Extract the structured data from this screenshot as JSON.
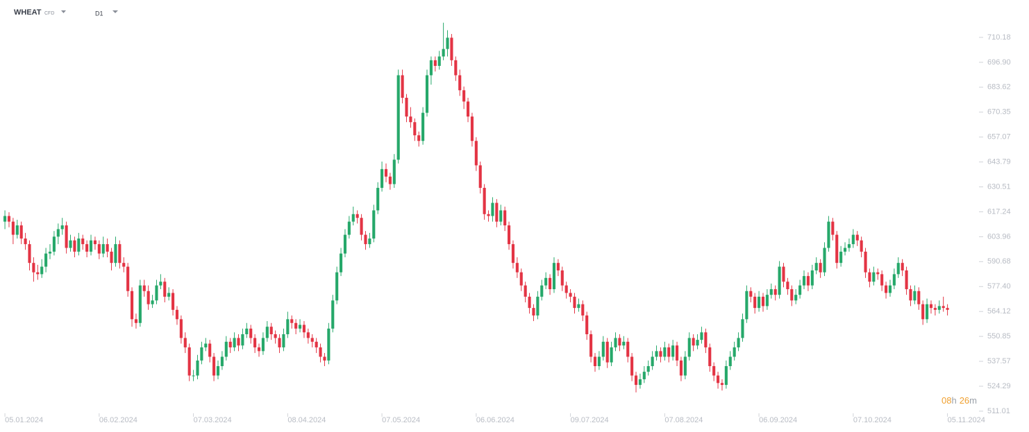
{
  "chart_data": {
    "type": "candlestick",
    "symbol": "WHEAT",
    "instrument": "CFD",
    "timeframe": "D1",
    "countdown_parts": [
      "08",
      "h",
      "26",
      "m"
    ],
    "up_color": "#26a86a",
    "down_color": "#e33444",
    "ylim": [
      508.4,
      730.1
    ],
    "yticks": [
      710.18,
      {
        "value": 696.9,
        "label": "696.90"
      },
      683.62,
      670.35,
      657.07,
      643.79,
      630.51,
      617.24,
      603.96,
      590.68,
      {
        "value": 577.4,
        "label": "577.40"
      },
      564.12,
      550.85,
      537.57,
      524.29,
      511.01
    ],
    "xlim": [
      -1.2,
      236
    ],
    "xticks": [
      {
        "value": 0,
        "label": "05.01.2024"
      },
      {
        "value": 23,
        "label": "06.02.2024"
      },
      {
        "value": 46,
        "label": "07.03.2024"
      },
      {
        "value": 69,
        "label": "08.04.2024"
      },
      {
        "value": 92,
        "label": "07.05.2024"
      },
      {
        "value": 115,
        "label": "06.06.2024"
      },
      {
        "value": 138,
        "label": "09.07.2024"
      },
      {
        "value": 161,
        "label": "07.08.2024"
      },
      {
        "value": 184,
        "label": "06.09.2024"
      },
      {
        "value": 207,
        "label": "07.10.2024"
      },
      {
        "value": 230,
        "label": "05.11.2024"
      }
    ],
    "ohlc": [
      [
        612,
        618,
        608,
        615
      ],
      [
        615,
        617,
        609,
        612
      ],
      [
        612,
        614,
        600,
        605
      ],
      [
        605,
        613,
        603,
        610
      ],
      [
        610,
        612,
        600,
        603
      ],
      [
        603,
        606,
        597,
        600
      ],
      [
        600,
        602,
        586,
        590
      ],
      [
        590,
        593,
        580,
        585
      ],
      [
        585,
        589,
        581,
        584
      ],
      [
        584,
        592,
        582,
        588
      ],
      [
        588,
        598,
        585,
        595
      ],
      [
        595,
        600,
        592,
        596
      ],
      [
        596,
        607,
        594,
        604
      ],
      [
        604,
        611,
        600,
        608
      ],
      [
        608,
        614,
        605,
        610
      ],
      [
        610,
        612,
        595,
        598
      ],
      [
        598,
        605,
        596,
        602
      ],
      [
        602,
        604,
        593,
        596
      ],
      [
        596,
        606,
        594,
        603
      ],
      [
        603,
        605,
        597,
        600
      ],
      [
        600,
        602,
        593,
        596
      ],
      [
        596,
        605,
        594,
        602
      ],
      [
        602,
        604,
        597,
        600
      ],
      [
        600,
        602,
        592,
        595
      ],
      [
        595,
        604,
        593,
        600
      ],
      [
        600,
        603,
        593,
        596
      ],
      [
        596,
        598,
        586,
        590
      ],
      [
        590,
        604,
        588,
        600
      ],
      [
        600,
        602,
        587,
        590
      ],
      [
        590,
        593,
        585,
        588
      ],
      [
        588,
        590,
        572,
        575
      ],
      [
        575,
        577,
        556,
        560
      ],
      [
        560,
        563,
        555,
        558
      ],
      [
        558,
        581,
        556,
        578
      ],
      [
        578,
        581,
        572,
        575
      ],
      [
        575,
        578,
        565,
        568
      ],
      [
        568,
        573,
        566,
        570
      ],
      [
        570,
        581,
        568,
        578
      ],
      [
        578,
        584,
        576,
        580
      ],
      [
        580,
        582,
        569,
        572
      ],
      [
        572,
        577,
        570,
        574
      ],
      [
        574,
        576,
        562,
        565
      ],
      [
        565,
        567,
        557,
        560
      ],
      [
        560,
        562,
        547,
        550
      ],
      [
        550,
        553,
        542,
        545
      ],
      [
        545,
        547,
        527,
        530
      ],
      [
        530,
        533,
        527,
        530
      ],
      [
        530,
        541,
        528,
        538
      ],
      [
        538,
        548,
        536,
        545
      ],
      [
        545,
        550,
        543,
        547
      ],
      [
        547,
        549,
        537,
        540
      ],
      [
        540,
        542,
        527,
        530
      ],
      [
        530,
        538,
        528,
        535
      ],
      [
        535,
        543,
        533,
        540
      ],
      [
        540,
        551,
        538,
        548
      ],
      [
        548,
        550,
        542,
        545
      ],
      [
        545,
        553,
        543,
        550
      ],
      [
        550,
        552,
        543,
        546
      ],
      [
        546,
        555,
        544,
        552
      ],
      [
        552,
        558,
        550,
        555
      ],
      [
        555,
        557,
        547,
        550
      ],
      [
        550,
        552,
        542,
        545
      ],
      [
        545,
        547,
        540,
        543
      ],
      [
        543,
        553,
        541,
        550
      ],
      [
        550,
        559,
        548,
        556
      ],
      [
        556,
        558,
        549,
        552
      ],
      [
        552,
        554,
        547,
        550
      ],
      [
        550,
        552,
        542,
        545
      ],
      [
        545,
        555,
        543,
        552
      ],
      [
        552,
        564,
        550,
        560
      ],
      [
        560,
        562,
        555,
        558
      ],
      [
        558,
        560,
        552,
        555
      ],
      [
        555,
        560,
        553,
        557
      ],
      [
        557,
        559,
        550,
        553
      ],
      [
        553,
        555,
        547,
        550
      ],
      [
        550,
        552,
        545,
        548
      ],
      [
        548,
        550,
        542,
        545
      ],
      [
        545,
        547,
        537,
        540
      ],
      [
        540,
        542,
        535,
        538
      ],
      [
        538,
        558,
        536,
        555
      ],
      [
        555,
        573,
        553,
        570
      ],
      [
        570,
        588,
        568,
        585
      ],
      [
        585,
        598,
        583,
        595
      ],
      [
        595,
        608,
        593,
        605
      ],
      [
        605,
        615,
        603,
        612
      ],
      [
        612,
        620,
        610,
        616
      ],
      [
        616,
        618,
        611,
        614
      ],
      [
        614,
        616,
        602,
        605
      ],
      [
        605,
        607,
        597,
        600
      ],
      [
        600,
        606,
        598,
        603
      ],
      [
        603,
        621,
        601,
        618
      ],
      [
        618,
        633,
        616,
        630
      ],
      [
        630,
        644,
        628,
        640
      ],
      [
        640,
        643,
        633,
        636
      ],
      [
        636,
        638,
        629,
        632
      ],
      [
        632,
        648,
        630,
        645
      ],
      [
        645,
        693,
        643,
        690
      ],
      [
        690,
        693,
        675,
        678
      ],
      [
        678,
        680,
        665,
        668
      ],
      [
        668,
        673,
        662,
        665
      ],
      [
        665,
        667,
        655,
        658
      ],
      [
        658,
        660,
        652,
        655
      ],
      [
        655,
        673,
        653,
        670
      ],
      [
        670,
        693,
        668,
        690
      ],
      [
        690,
        700,
        685,
        698
      ],
      [
        698,
        700,
        692,
        695
      ],
      [
        695,
        703,
        693,
        700
      ],
      [
        700,
        718,
        698,
        704
      ],
      [
        704,
        714,
        700,
        710
      ],
      [
        710,
        712,
        695,
        698
      ],
      [
        698,
        700,
        687,
        690
      ],
      [
        690,
        693,
        679,
        682
      ],
      [
        682,
        684,
        672,
        676
      ],
      [
        676,
        678,
        665,
        668
      ],
      [
        668,
        670,
        652,
        655
      ],
      [
        655,
        657,
        639,
        642
      ],
      [
        642,
        644,
        627,
        630
      ],
      [
        630,
        632,
        613,
        616
      ],
      [
        616,
        618,
        612,
        615
      ],
      [
        615,
        625,
        612,
        622
      ],
      [
        622,
        624,
        609,
        612
      ],
      [
        612,
        621,
        610,
        618
      ],
      [
        618,
        620,
        607,
        610
      ],
      [
        610,
        612,
        597,
        600
      ],
      [
        600,
        602,
        587,
        590
      ],
      [
        590,
        593,
        582,
        585
      ],
      [
        585,
        587,
        575,
        578
      ],
      [
        578,
        580,
        569,
        572
      ],
      [
        572,
        574,
        563,
        566
      ],
      [
        566,
        568,
        559,
        562
      ],
      [
        562,
        575,
        560,
        572
      ],
      [
        572,
        581,
        570,
        578
      ],
      [
        578,
        585,
        576,
        582
      ],
      [
        582,
        584,
        573,
        576
      ],
      [
        576,
        593,
        574,
        590
      ],
      [
        590,
        592,
        583,
        586
      ],
      [
        586,
        588,
        575,
        578
      ],
      [
        578,
        580,
        571,
        574
      ],
      [
        574,
        576,
        569,
        572
      ],
      [
        572,
        574,
        563,
        566
      ],
      [
        566,
        571,
        564,
        568
      ],
      [
        568,
        570,
        559,
        562
      ],
      [
        562,
        564,
        549,
        552
      ],
      [
        552,
        554,
        537,
        540
      ],
      [
        540,
        542,
        532,
        535
      ],
      [
        535,
        543,
        533,
        540
      ],
      [
        540,
        551,
        538,
        548
      ],
      [
        548,
        550,
        534,
        537
      ],
      [
        537,
        548,
        535,
        545
      ],
      [
        545,
        553,
        543,
        550
      ],
      [
        550,
        552,
        543,
        546
      ],
      [
        546,
        551,
        544,
        548
      ],
      [
        548,
        550,
        537,
        540
      ],
      [
        540,
        542,
        527,
        530
      ],
      [
        530,
        532,
        521,
        525
      ],
      [
        525,
        531,
        523,
        528
      ],
      [
        528,
        535,
        526,
        532
      ],
      [
        532,
        538,
        530,
        535
      ],
      [
        535,
        543,
        533,
        540
      ],
      [
        540,
        546,
        538,
        543
      ],
      [
        543,
        545,
        537,
        540
      ],
      [
        540,
        548,
        538,
        545
      ],
      [
        545,
        547,
        537,
        540
      ],
      [
        540,
        549,
        538,
        546
      ],
      [
        546,
        548,
        535,
        538
      ],
      [
        538,
        540,
        527,
        530
      ],
      [
        530,
        543,
        528,
        540
      ],
      [
        540,
        553,
        538,
        550
      ],
      [
        550,
        552,
        543,
        546
      ],
      [
        546,
        552,
        544,
        549
      ],
      [
        549,
        556,
        547,
        553
      ],
      [
        553,
        555,
        542,
        545
      ],
      [
        545,
        547,
        532,
        535
      ],
      [
        535,
        537,
        527,
        530
      ],
      [
        530,
        532,
        523,
        526
      ],
      [
        526,
        528,
        522,
        525
      ],
      [
        525,
        538,
        523,
        535
      ],
      [
        535,
        543,
        533,
        540
      ],
      [
        540,
        548,
        538,
        545
      ],
      [
        545,
        553,
        543,
        550
      ],
      [
        550,
        563,
        548,
        560
      ],
      [
        560,
        578,
        558,
        575
      ],
      [
        575,
        577,
        569,
        572
      ],
      [
        572,
        574,
        563,
        566
      ],
      [
        566,
        575,
        564,
        572
      ],
      [
        572,
        574,
        564,
        567
      ],
      [
        567,
        576,
        565,
        573
      ],
      [
        573,
        579,
        571,
        576
      ],
      [
        576,
        578,
        570,
        573
      ],
      [
        573,
        591,
        571,
        588
      ],
      [
        588,
        590,
        577,
        580
      ],
      [
        580,
        582,
        573,
        576
      ],
      [
        576,
        578,
        567,
        570
      ],
      [
        570,
        576,
        568,
        573
      ],
      [
        573,
        581,
        571,
        578
      ],
      [
        578,
        586,
        576,
        583
      ],
      [
        583,
        585,
        575,
        578
      ],
      [
        578,
        589,
        576,
        586
      ],
      [
        586,
        593,
        584,
        590
      ],
      [
        590,
        592,
        582,
        585
      ],
      [
        585,
        601,
        583,
        598
      ],
      [
        598,
        615,
        596,
        612
      ],
      [
        612,
        614,
        602,
        605
      ],
      [
        605,
        607,
        587,
        590
      ],
      [
        590,
        599,
        588,
        596
      ],
      [
        596,
        601,
        594,
        598
      ],
      [
        598,
        603,
        596,
        600
      ],
      [
        600,
        608,
        598,
        605
      ],
      [
        605,
        607,
        599,
        602
      ],
      [
        602,
        604,
        593,
        596
      ],
      [
        596,
        598,
        582,
        585
      ],
      [
        585,
        587,
        577,
        580
      ],
      [
        580,
        588,
        578,
        585
      ],
      [
        585,
        587,
        581,
        584
      ],
      [
        584,
        586,
        575,
        578
      ],
      [
        578,
        580,
        571,
        574
      ],
      [
        574,
        581,
        572,
        578
      ],
      [
        578,
        587,
        576,
        584
      ],
      [
        584,
        593,
        582,
        590
      ],
      [
        590,
        592,
        583,
        586
      ],
      [
        586,
        588,
        573,
        576
      ],
      [
        576,
        578,
        567,
        570
      ],
      [
        570,
        578,
        568,
        575
      ],
      [
        575,
        577,
        565,
        568
      ],
      [
        568,
        570,
        557,
        560
      ],
      [
        560,
        571,
        558,
        568
      ],
      [
        568,
        570,
        563,
        566
      ],
      [
        566,
        568,
        562,
        565
      ],
      [
        565,
        570,
        563,
        567
      ],
      [
        567,
        572,
        564,
        566
      ],
      [
        566,
        568,
        562,
        565
      ]
    ]
  }
}
